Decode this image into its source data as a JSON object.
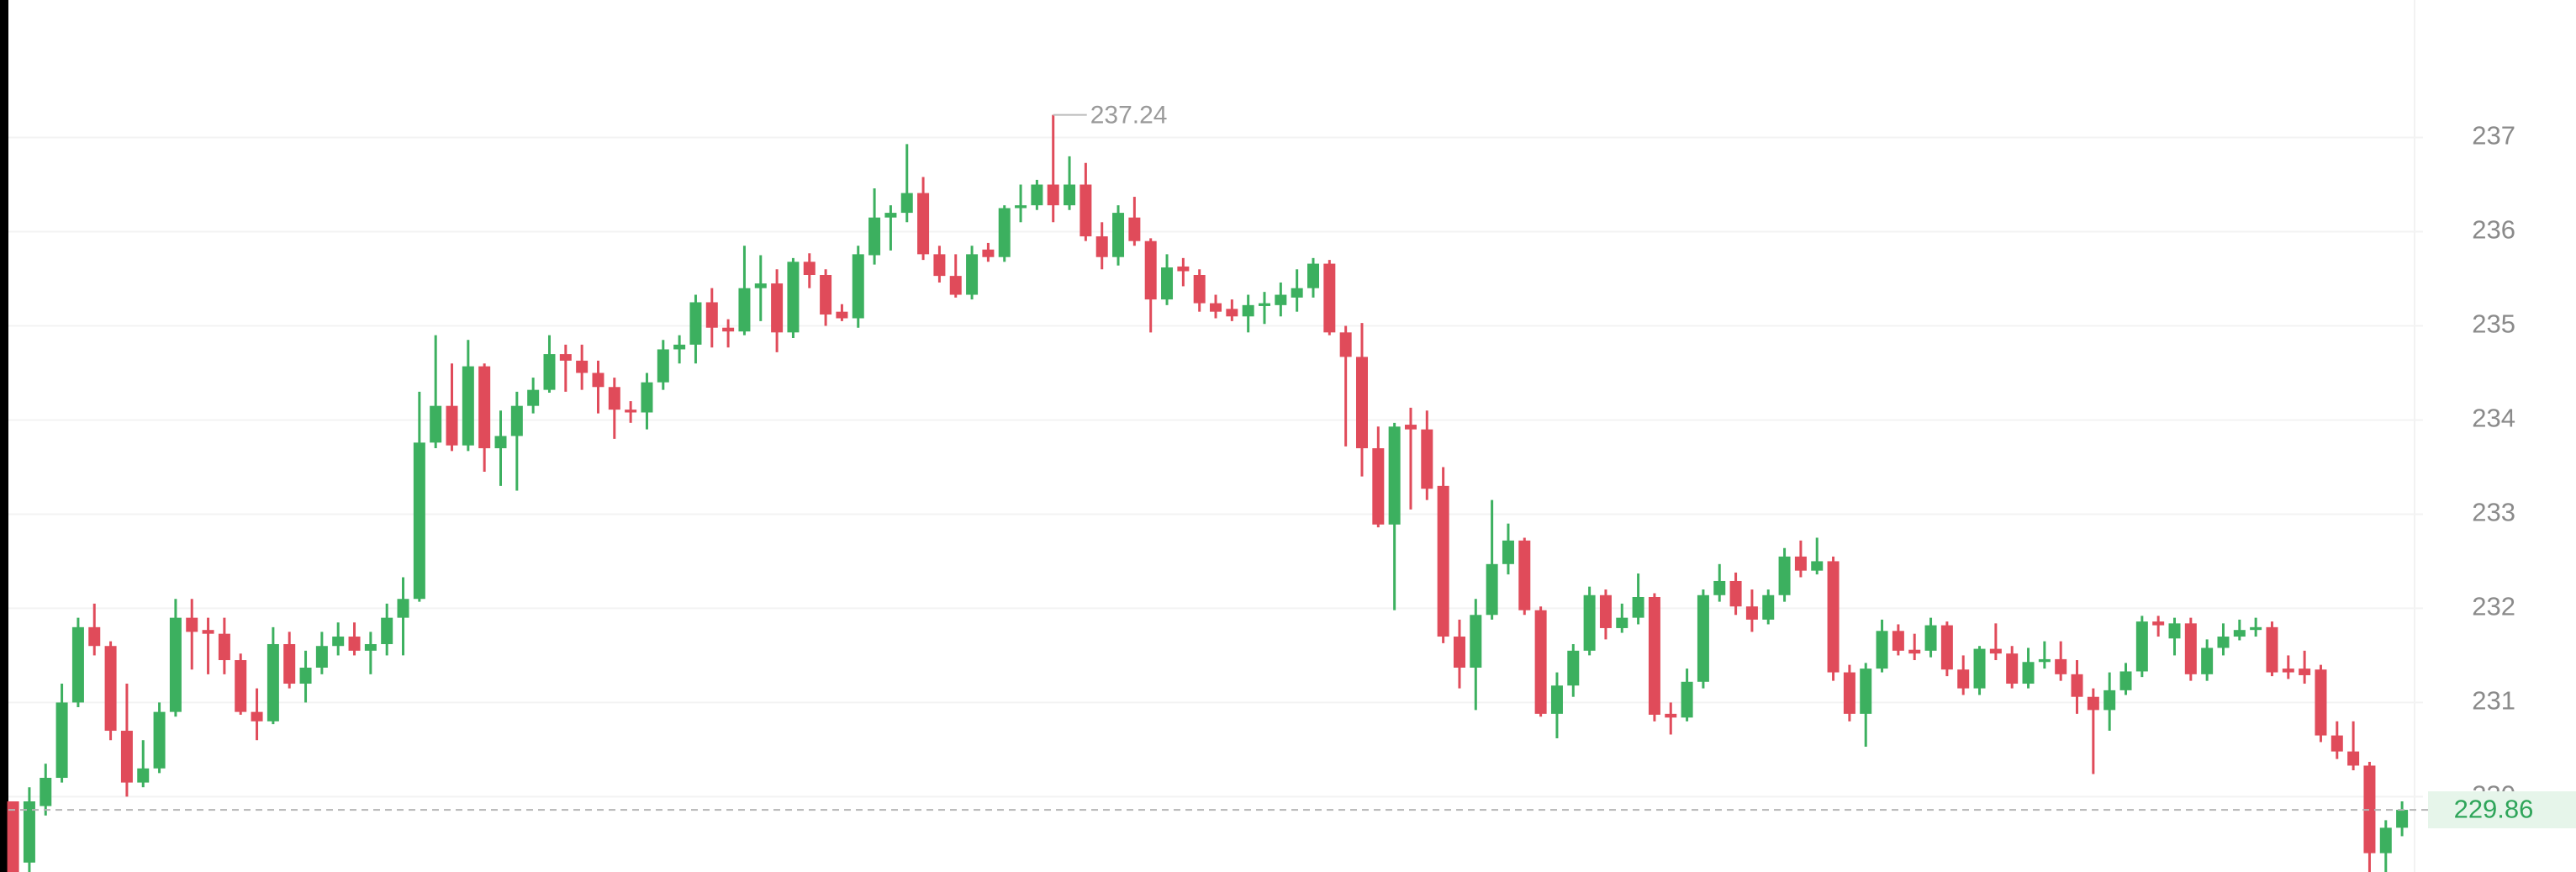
{
  "chart_data": {
    "type": "candlestick",
    "up_color": "#3cb05f",
    "down_color": "#e04b5a",
    "ylim": [
      229.2,
      238.46
    ],
    "yticks": [
      230,
      231,
      232,
      233,
      234,
      235,
      236,
      237
    ],
    "grid": true,
    "open": [
      229.95,
      229.3,
      229.9,
      230.2,
      231.0,
      231.8,
      231.6,
      230.7,
      230.15,
      230.3,
      230.9,
      231.9,
      231.77,
      231.73,
      231.45,
      230.9,
      230.8,
      231.62,
      231.2,
      231.37,
      231.6,
      231.7,
      231.55,
      231.62,
      231.9,
      232.1,
      233.76,
      234.15,
      233.73,
      234.57,
      233.7,
      233.83,
      234.15,
      234.32,
      234.7,
      234.63,
      234.5,
      234.35,
      234.11,
      234.08,
      234.4,
      234.75,
      234.8,
      235.25,
      234.98,
      234.94,
      235.4,
      235.45,
      234.93,
      235.68,
      235.54,
      235.15,
      235.08,
      235.75,
      236.15,
      236.2,
      236.41,
      235.76,
      235.53,
      235.33,
      235.81,
      235.73,
      236.25,
      236.28,
      236.5,
      236.28,
      236.5,
      235.95,
      235.73,
      236.15,
      235.9,
      235.28,
      235.63,
      235.54,
      235.24,
      235.18,
      235.1,
      235.21,
      235.22,
      235.3,
      235.4,
      235.66,
      234.93,
      234.67,
      233.7,
      232.89,
      233.95,
      233.9,
      233.3,
      231.7,
      231.37,
      231.93,
      232.47,
      232.72,
      231.98,
      230.88,
      231.18,
      231.55,
      232.14,
      231.79,
      231.9,
      232.12,
      230.88,
      230.84,
      231.22,
      232.14,
      232.29,
      232.02,
      231.88,
      232.14,
      232.55,
      232.4,
      232.5,
      231.32,
      230.88,
      231.36,
      231.76,
      231.56,
      231.55,
      231.82,
      231.35,
      231.15,
      231.57,
      231.52,
      231.2,
      231.43,
      231.46,
      231.3,
      231.06,
      230.92,
      231.13,
      231.33,
      231.86,
      231.68,
      231.84,
      231.3,
      231.58,
      231.7,
      231.77,
      231.8,
      231.36,
      231.36,
      231.35,
      230.65,
      230.48,
      230.33,
      229.4,
      229.67
    ],
    "high": [
      229.95,
      230.1,
      230.35,
      231.2,
      231.9,
      232.05,
      231.65,
      231.2,
      230.6,
      231.0,
      232.1,
      232.1,
      231.9,
      231.9,
      231.52,
      231.15,
      231.8,
      231.75,
      231.55,
      231.75,
      231.85,
      231.85,
      231.75,
      232.05,
      232.33,
      234.3,
      234.9,
      234.6,
      234.85,
      234.6,
      234.1,
      234.3,
      234.45,
      234.9,
      234.8,
      234.8,
      234.63,
      234.45,
      234.2,
      234.5,
      234.85,
      234.9,
      235.33,
      235.4,
      235.07,
      235.85,
      235.75,
      235.6,
      235.72,
      235.77,
      235.6,
      235.23,
      235.85,
      236.46,
      236.28,
      236.93,
      236.58,
      235.85,
      235.76,
      235.85,
      235.88,
      236.28,
      236.5,
      236.55,
      237.24,
      236.8,
      236.73,
      236.1,
      236.28,
      236.37,
      235.93,
      235.76,
      235.72,
      235.6,
      235.33,
      235.28,
      235.33,
      235.36,
      235.46,
      235.6,
      235.72,
      235.7,
      235.0,
      235.03,
      233.93,
      233.97,
      234.13,
      234.1,
      233.5,
      231.88,
      232.1,
      233.15,
      232.9,
      232.75,
      232.02,
      231.32,
      231.62,
      232.23,
      232.2,
      232.05,
      232.37,
      232.16,
      231.0,
      231.36,
      232.2,
      232.47,
      232.38,
      232.2,
      232.2,
      232.64,
      232.72,
      232.75,
      232.55,
      231.4,
      231.42,
      231.88,
      231.83,
      231.73,
      231.9,
      231.86,
      231.5,
      231.6,
      231.84,
      231.6,
      231.58,
      231.65,
      231.65,
      231.45,
      231.15,
      231.32,
      231.42,
      231.92,
      231.92,
      231.9,
      231.9,
      231.67,
      231.84,
      231.88,
      231.9,
      231.86,
      231.5,
      231.55,
      231.4,
      230.8,
      230.8,
      230.37,
      229.75,
      229.95
    ],
    "low": [
      229.2,
      229.2,
      229.8,
      230.15,
      230.95,
      231.5,
      230.6,
      230.0,
      230.1,
      230.25,
      230.85,
      231.35,
      231.3,
      231.3,
      230.87,
      230.6,
      230.77,
      231.15,
      231.0,
      231.3,
      231.5,
      231.5,
      231.3,
      231.5,
      231.5,
      232.07,
      233.7,
      233.67,
      233.67,
      233.45,
      233.3,
      233.25,
      234.07,
      234.29,
      234.3,
      234.32,
      234.07,
      233.8,
      233.97,
      233.9,
      234.32,
      234.6,
      234.6,
      234.77,
      234.77,
      234.9,
      235.05,
      234.72,
      234.87,
      235.4,
      235.0,
      235.05,
      234.98,
      235.65,
      235.8,
      236.1,
      235.7,
      235.46,
      235.3,
      235.28,
      235.68,
      235.68,
      236.1,
      236.23,
      236.1,
      236.23,
      235.9,
      235.6,
      235.64,
      235.85,
      234.93,
      235.22,
      235.42,
      235.15,
      235.08,
      235.05,
      234.93,
      235.02,
      235.1,
      235.15,
      235.3,
      234.9,
      233.72,
      233.4,
      232.86,
      231.98,
      233.05,
      233.15,
      231.63,
      231.15,
      230.92,
      231.88,
      232.36,
      231.93,
      230.85,
      230.62,
      231.06,
      231.5,
      231.67,
      231.74,
      231.83,
      230.8,
      230.66,
      230.8,
      231.15,
      232.07,
      231.93,
      231.75,
      231.83,
      232.07,
      232.33,
      232.36,
      231.23,
      230.8,
      230.53,
      231.32,
      231.5,
      231.45,
      231.48,
      231.28,
      231.08,
      231.08,
      231.45,
      231.15,
      231.15,
      231.36,
      231.23,
      230.88,
      230.24,
      230.7,
      231.08,
      231.27,
      231.7,
      231.5,
      231.23,
      231.23,
      231.5,
      231.66,
      231.7,
      231.28,
      231.25,
      231.2,
      230.58,
      230.4,
      230.28,
      229.2,
      229.2,
      229.58
    ],
    "close": [
      229.2,
      229.95,
      230.2,
      231.0,
      231.8,
      231.6,
      230.7,
      230.15,
      230.3,
      230.9,
      231.9,
      231.75,
      231.73,
      231.45,
      230.9,
      230.8,
      231.62,
      231.2,
      231.37,
      231.6,
      231.7,
      231.55,
      231.62,
      231.9,
      232.1,
      233.76,
      234.15,
      233.73,
      234.57,
      233.7,
      233.83,
      234.15,
      234.32,
      234.7,
      234.63,
      234.5,
      234.35,
      234.11,
      234.08,
      234.4,
      234.75,
      234.8,
      235.25,
      234.98,
      234.94,
      235.4,
      235.45,
      234.93,
      235.68,
      235.54,
      235.12,
      235.08,
      235.76,
      236.15,
      236.2,
      236.41,
      235.76,
      235.53,
      235.33,
      235.76,
      235.73,
      236.25,
      236.28,
      236.5,
      236.28,
      236.5,
      235.95,
      235.73,
      236.2,
      235.9,
      235.28,
      235.62,
      235.58,
      235.24,
      235.15,
      235.1,
      235.22,
      235.24,
      235.33,
      235.4,
      235.66,
      234.93,
      234.67,
      233.7,
      232.89,
      233.93,
      233.9,
      233.27,
      231.7,
      231.37,
      231.93,
      232.47,
      232.72,
      231.98,
      230.88,
      231.18,
      231.55,
      232.14,
      231.79,
      231.9,
      232.12,
      230.87,
      230.84,
      231.22,
      232.14,
      232.29,
      232.02,
      231.88,
      232.14,
      232.55,
      232.4,
      232.5,
      231.32,
      230.88,
      231.36,
      231.76,
      231.55,
      231.52,
      231.82,
      231.35,
      231.15,
      231.57,
      231.52,
      231.2,
      231.43,
      231.46,
      231.3,
      231.06,
      230.92,
      231.13,
      231.33,
      231.86,
      231.82,
      231.84,
      231.3,
      231.58,
      231.7,
      231.77,
      231.8,
      231.32,
      231.32,
      231.29,
      230.65,
      230.48,
      230.33,
      229.4,
      229.67,
      229.86
    ]
  }
}
